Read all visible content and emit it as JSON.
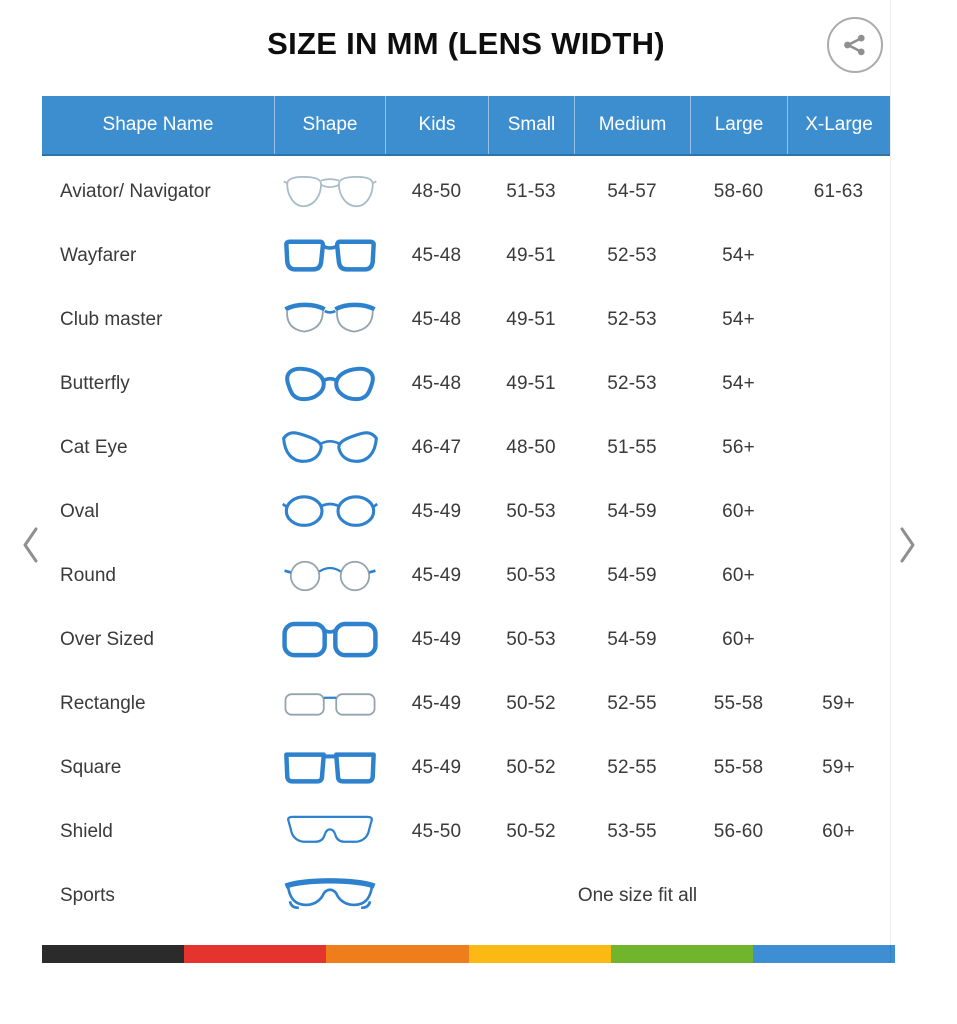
{
  "title": "SIZE IN MM (LENS WIDTH)",
  "share": {
    "icon": "share-icon"
  },
  "nav": {
    "prev_icon": "chevron-left-icon",
    "next_icon": "chevron-right-icon"
  },
  "colors": {
    "header_bg": "#3d8ecf",
    "header_text": "#ffffff",
    "row_text": "#3a3a3a",
    "frame_blue": "#2e82cd",
    "frame_light": "#a7bcc9",
    "frame_gray": "#93a4ad",
    "chevron_gray": "#8f8f8f"
  },
  "table": {
    "columns": [
      "Shape Name",
      "Shape",
      "Kids",
      "Small",
      "Medium",
      "Large",
      "X-Large"
    ],
    "rows": [
      {
        "name": "Aviator/ Navigator",
        "icon": "aviator-glasses-icon",
        "sizes": [
          "48-50",
          "51-53",
          "54-57",
          "58-60",
          "61-63"
        ]
      },
      {
        "name": "Wayfarer",
        "icon": "wayfarer-glasses-icon",
        "sizes": [
          "45-48",
          "49-51",
          "52-53",
          "54+",
          ""
        ]
      },
      {
        "name": "Club master",
        "icon": "clubmaster-glasses-icon",
        "sizes": [
          "45-48",
          "49-51",
          "52-53",
          "54+",
          ""
        ]
      },
      {
        "name": "Butterfly",
        "icon": "butterfly-glasses-icon",
        "sizes": [
          "45-48",
          "49-51",
          "52-53",
          "54+",
          ""
        ]
      },
      {
        "name": "Cat Eye",
        "icon": "cateye-glasses-icon",
        "sizes": [
          "46-47",
          "48-50",
          "51-55",
          "56+",
          ""
        ]
      },
      {
        "name": "Oval",
        "icon": "oval-glasses-icon",
        "sizes": [
          "45-49",
          "50-53",
          "54-59",
          "60+",
          ""
        ]
      },
      {
        "name": "Round",
        "icon": "round-glasses-icon",
        "sizes": [
          "45-49",
          "50-53",
          "54-59",
          "60+",
          ""
        ]
      },
      {
        "name": "Over Sized",
        "icon": "oversized-glasses-icon",
        "sizes": [
          "45-49",
          "50-53",
          "54-59",
          "60+",
          ""
        ]
      },
      {
        "name": "Rectangle",
        "icon": "rectangle-glasses-icon",
        "sizes": [
          "45-49",
          "50-52",
          "52-55",
          "55-58",
          "59+"
        ]
      },
      {
        "name": "Square",
        "icon": "square-glasses-icon",
        "sizes": [
          "45-49",
          "50-52",
          "52-55",
          "55-58",
          "59+"
        ]
      },
      {
        "name": "Shield",
        "icon": "shield-glasses-icon",
        "sizes": [
          "45-50",
          "50-52",
          "53-55",
          "56-60",
          "60+"
        ]
      },
      {
        "name": "Sports",
        "icon": "sports-glasses-icon",
        "span_text": "One size fit all"
      }
    ]
  },
  "footer_bar_colors": [
    "#2b2b2b",
    "#e5332d",
    "#ee7d1b",
    "#fcb813",
    "#71b52c",
    "#3d8ed2"
  ]
}
